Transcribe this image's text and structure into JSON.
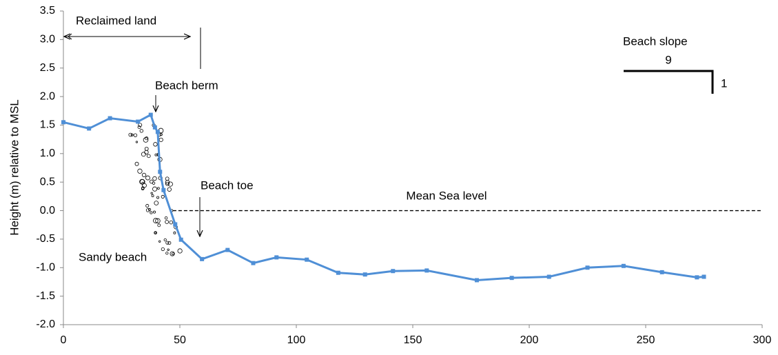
{
  "chart_data": {
    "type": "line",
    "y_label": "Height (m) relative to MSL",
    "series": [
      {
        "name": "Beach profile",
        "color": "#4f8fd6",
        "x": [
          0,
          11,
          20,
          32,
          37.5,
          39.3,
          40.5,
          41.5,
          43,
          48,
          50.5,
          59.5,
          70.5,
          81.5,
          91.5,
          104.5,
          118,
          129.5,
          141.5,
          156,
          177.5,
          192.5,
          208.5,
          225,
          240.5,
          257,
          272,
          275
        ],
        "values": [
          1.55,
          1.44,
          1.62,
          1.56,
          1.68,
          1.46,
          1.38,
          0.68,
          0.36,
          -0.24,
          -0.51,
          -0.85,
          -0.69,
          -0.92,
          -0.82,
          -0.86,
          -1.09,
          -1.12,
          -1.06,
          -1.05,
          -1.22,
          -1.18,
          -1.16,
          -1.0,
          -0.97,
          -1.08,
          -1.17,
          -1.16
        ]
      }
    ],
    "xlim": [
      0,
      300
    ],
    "xticks": [
      0,
      50,
      100,
      150,
      200,
      250,
      300
    ],
    "ylim": [
      -2,
      3.5
    ],
    "yticks": [
      {
        "value": -2,
        "label": "-2.0"
      },
      {
        "value": -1.5,
        "label": "-1.5"
      },
      {
        "value": -1,
        "label": "-1.0"
      },
      {
        "value": -0.5,
        "label": "-0.5"
      },
      {
        "value": 0,
        "label": "0.0"
      },
      {
        "value": 0.5,
        "label": "0.5"
      },
      {
        "value": 1,
        "label": "1.0"
      },
      {
        "value": 1.5,
        "label": "1.5"
      },
      {
        "value": 2,
        "label": "2.0"
      },
      {
        "value": 2.5,
        "label": "2.5"
      },
      {
        "value": 3,
        "label": "3.0"
      },
      {
        "value": 3.5,
        "label": "3.5"
      }
    ],
    "reference_line": {
      "label": "Mean Sea level",
      "y": 0,
      "x": [
        47,
        300
      ]
    },
    "annotations": {
      "reclaimed": "Reclaimed land",
      "berm": "Beach berm",
      "toe": "Beach toe",
      "sandy": "Sandy beach",
      "slope": "Beach slope",
      "slope_run": "9",
      "slope_rise": "1"
    }
  }
}
